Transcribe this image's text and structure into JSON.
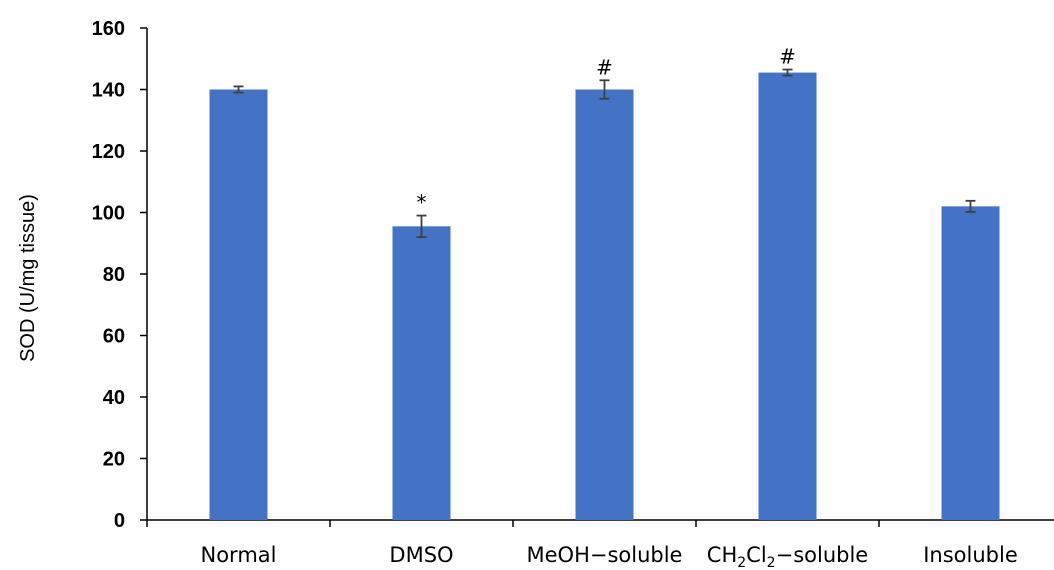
{
  "chart_data": {
    "type": "bar",
    "title": "",
    "xlabel": "",
    "ylabel": "SOD (U/mg tissue)",
    "ylim": [
      0,
      160
    ],
    "yticks": [
      0,
      20,
      40,
      60,
      80,
      100,
      120,
      140,
      160
    ],
    "grid": false,
    "legend": "none",
    "bar_color": "#4472C4",
    "error_color": "#404040",
    "categories": [
      {
        "label": "Normal",
        "parts": [
          {
            "t": "Normal"
          }
        ]
      },
      {
        "label": "DMSO",
        "parts": [
          {
            "t": "DMSO"
          }
        ]
      },
      {
        "label": "MeOH−soluble",
        "parts": [
          {
            "t": "MeOH−soluble"
          }
        ]
      },
      {
        "label": "CH2Cl2−soluble",
        "parts": [
          {
            "t": "CH"
          },
          {
            "t": "2",
            "sub": true
          },
          {
            "t": "Cl"
          },
          {
            "t": "2",
            "sub": true
          },
          {
            "t": "−soluble"
          }
        ]
      },
      {
        "label": "Insoluble",
        "parts": [
          {
            "t": "Insoluble"
          }
        ]
      }
    ],
    "values": [
      140,
      95.5,
      140,
      145.5,
      102
    ],
    "errors": [
      1,
      3.5,
      3,
      1,
      1.8
    ],
    "annotations": [
      "",
      "*",
      "#",
      "#",
      ""
    ]
  }
}
